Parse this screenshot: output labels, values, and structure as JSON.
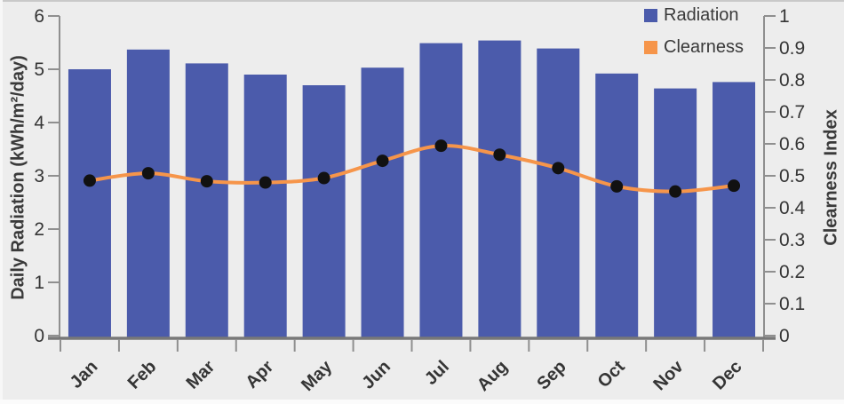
{
  "chart_data": {
    "type": "bar",
    "subtype": "bar-line-combo",
    "categories": [
      "Jan",
      "Feb",
      "Mar",
      "Apr",
      "May",
      "Jun",
      "Jul",
      "Aug",
      "Sep",
      "Oct",
      "Nov",
      "Dec"
    ],
    "series": [
      {
        "name": "Radiation",
        "mark": "bar",
        "axis": "left",
        "values": [
          5.0,
          5.37,
          5.11,
          4.9,
          4.7,
          5.03,
          5.49,
          5.54,
          5.39,
          4.92,
          4.64,
          4.76
        ]
      },
      {
        "name": "Clearness",
        "mark": "line",
        "axis": "right",
        "values": [
          0.485,
          0.508,
          0.483,
          0.479,
          0.493,
          0.547,
          0.594,
          0.566,
          0.524,
          0.467,
          0.451,
          0.469
        ]
      }
    ],
    "left_axis": {
      "label": "Daily Radiation (kWh/m²/day)",
      "min": 0,
      "max": 6,
      "step": 1,
      "ticks": [
        "0",
        "1",
        "2",
        "3",
        "4",
        "5",
        "6"
      ]
    },
    "right_axis": {
      "label": "Clearness Index",
      "min": 0,
      "max": 1,
      "step": 0.1,
      "ticks": [
        "0",
        "0.1",
        "0.2",
        "0.3",
        "0.4",
        "0.5",
        "0.6",
        "0.7",
        "0.8",
        "0.9",
        "1"
      ]
    },
    "legend": {
      "position": "top-right",
      "entries": [
        "Radiation",
        "Clearness"
      ]
    },
    "grid": false,
    "colors": {
      "radiation_bar": "#4b5bab",
      "clearness_line": "#f6954a",
      "marker": "#111111",
      "axis": "#8f8f8f",
      "baseline": "#787878",
      "text": "#3a3a3a",
      "background": "#ededed"
    }
  }
}
